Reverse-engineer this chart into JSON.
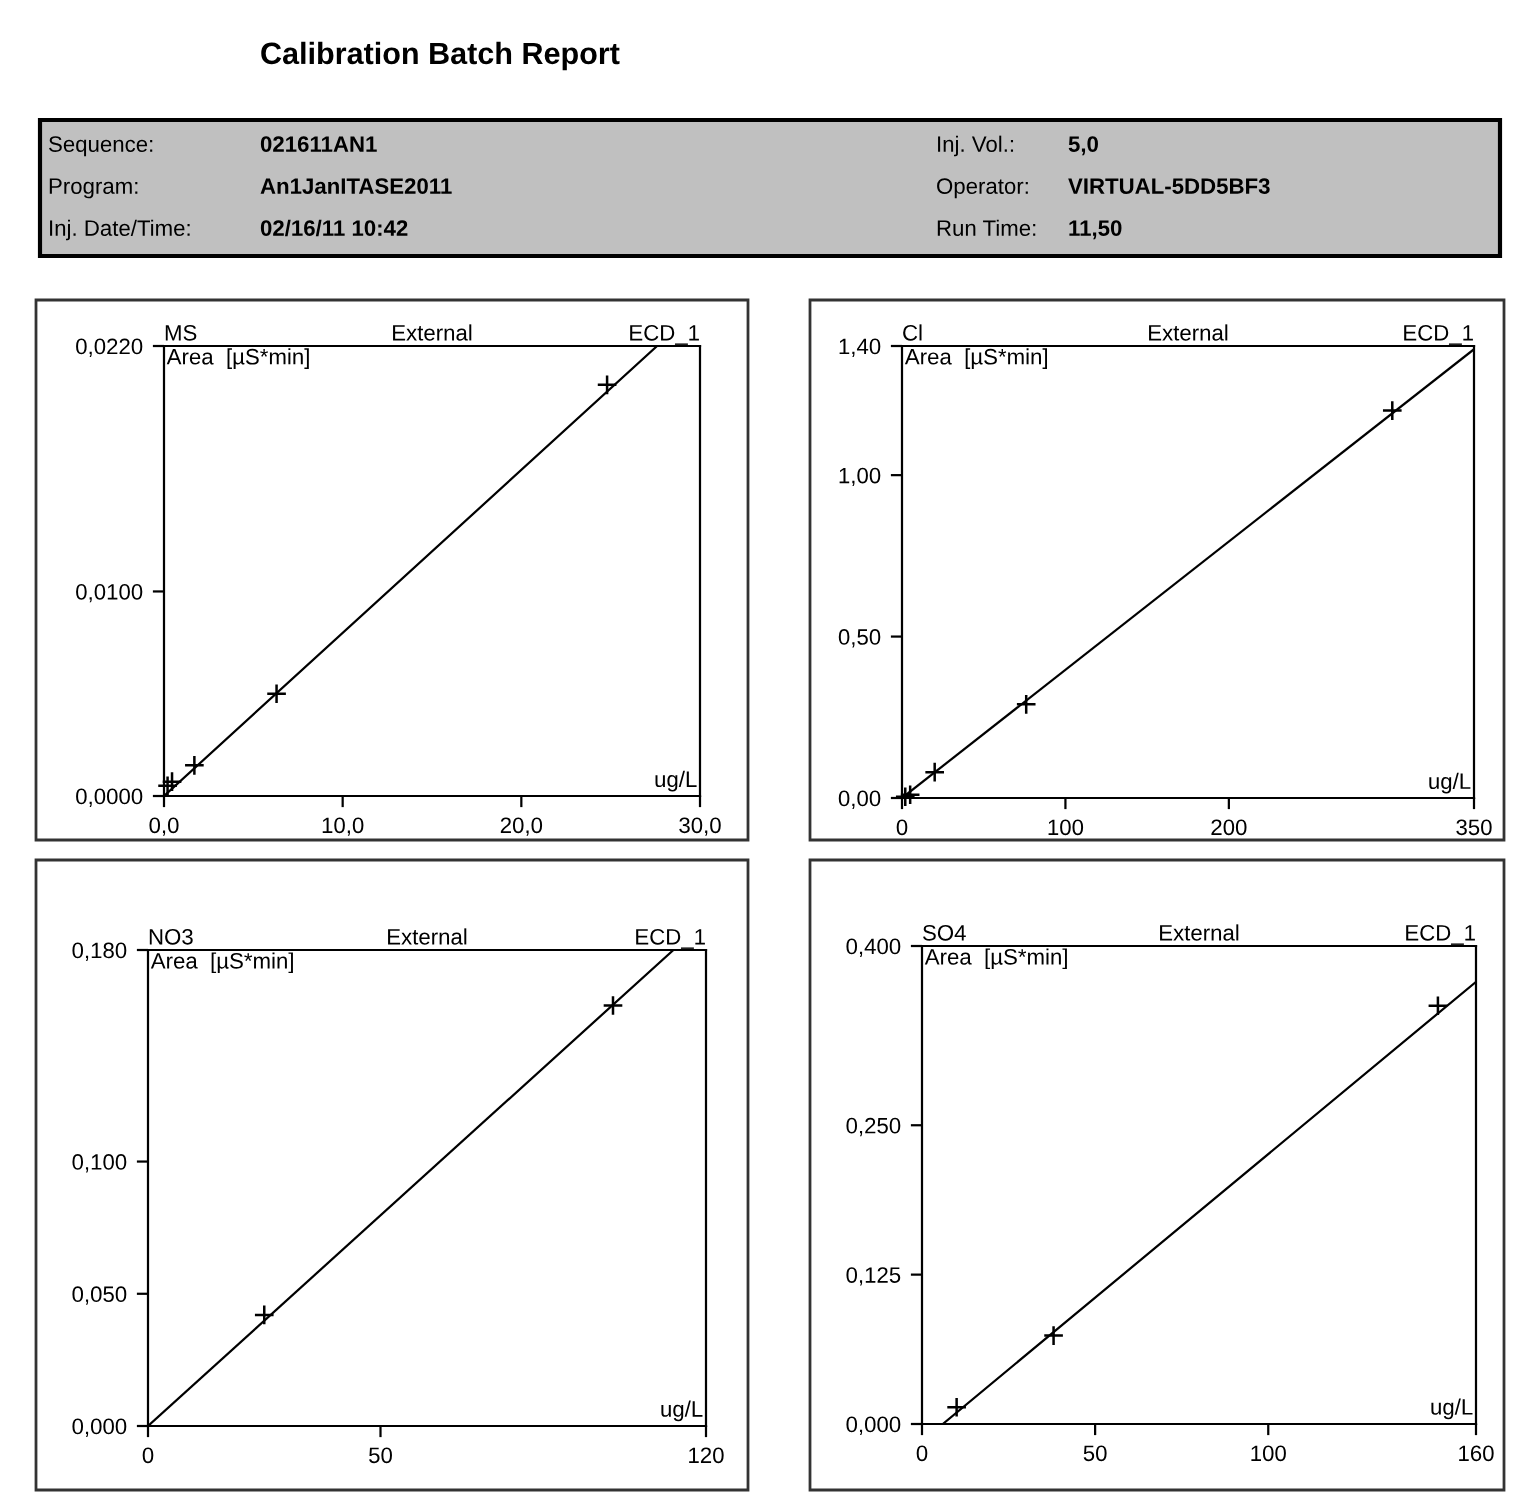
{
  "chart_data": [
    {
      "type": "other",
      "title": "Calibration Batch Report",
      "annotations": [
        "Sequence:",
        "021611AN1",
        "Inj. Vol.:",
        "5,0",
        "Program:",
        "An1JanITASE2011",
        "Operator:",
        "VIRTUAL-5DD5BF3",
        "Inj. Date/Time:",
        "02/16/11 10:42",
        "Run Time:",
        "11,50"
      ]
    },
    {
      "type": "scatter",
      "title": "MS",
      "annotations": [
        "External",
        "ECD_1"
      ],
      "ylabel": "Area  [µS*min]",
      "xlabel": "ug/L",
      "grid": false,
      "xlim": [
        0,
        30
      ],
      "xticks": [
        {
          "value": 0,
          "label": "0,0"
        },
        {
          "value": 10,
          "label": "10,0"
        },
        {
          "value": 20,
          "label": "20,0"
        },
        {
          "value": 30,
          "label": "30,0"
        }
      ],
      "ylim": [
        0,
        0.022
      ],
      "yticks": [
        {
          "value": 0,
          "label": "0,0000"
        },
        {
          "value": 0.01,
          "label": "0,0100"
        },
        {
          "value": 0.022,
          "label": "0,0220"
        }
      ],
      "series": [
        {
          "type": "scatter",
          "marker": "cross",
          "color": "#000000",
          "x": [
            0.2,
            0.45,
            1.7,
            6.3,
            24.8
          ],
          "values": [
            0.0005,
            0.0007,
            0.0015,
            0.005,
            0.0201
          ]
        },
        {
          "type": "line",
          "marker": "none",
          "color": "#000000",
          "x": [
            0,
            27.6
          ],
          "values": [
            0,
            0.022
          ]
        }
      ]
    },
    {
      "type": "scatter",
      "title": "Cl",
      "annotations": [
        "External",
        "ECD_1"
      ],
      "ylabel": "Area  [µS*min]",
      "xlabel": "ug/L",
      "grid": false,
      "xlim": [
        0,
        350
      ],
      "xticks": [
        0,
        100,
        200,
        350
      ],
      "ylim": [
        0,
        1.4
      ],
      "yticks": [
        {
          "value": 0,
          "label": "0,00"
        },
        {
          "value": 0.5,
          "label": "0,50"
        },
        {
          "value": 1.0,
          "label": "1,00"
        },
        {
          "value": 1.4,
          "label": "1,40"
        }
      ],
      "series": [
        {
          "type": "scatter",
          "marker": "cross",
          "color": "#000000",
          "x": [
            2,
            5,
            20,
            76,
            300
          ],
          "values": [
            0.004,
            0.01,
            0.08,
            0.29,
            1.2
          ]
        },
        {
          "type": "line",
          "marker": "none",
          "color": "#000000",
          "x": [
            0,
            350
          ],
          "values": [
            0,
            1.39
          ]
        }
      ]
    },
    {
      "type": "scatter",
      "title": "NO3",
      "annotations": [
        "External",
        "ECD_1"
      ],
      "ylabel": "Area  [µS*min]",
      "xlabel": "ug/L",
      "grid": false,
      "xlim": [
        0,
        120
      ],
      "xticks": [
        0,
        50,
        120
      ],
      "ylim": [
        0,
        0.18
      ],
      "yticks": [
        {
          "value": 0,
          "label": "0,000"
        },
        {
          "value": 0.05,
          "label": "0,050"
        },
        {
          "value": 0.1,
          "label": "0,100"
        },
        {
          "value": 0.18,
          "label": "0,180"
        }
      ],
      "series": [
        {
          "type": "scatter",
          "marker": "cross",
          "color": "#000000",
          "x": [
            25,
            100
          ],
          "values": [
            0.042,
            0.159
          ]
        },
        {
          "type": "line",
          "marker": "none",
          "color": "#000000",
          "x": [
            0,
            113
          ],
          "values": [
            0,
            0.18
          ]
        }
      ]
    },
    {
      "type": "scatter",
      "title": "SO4",
      "annotations": [
        "External",
        "ECD_1"
      ],
      "ylabel": "Area  [µS*min]",
      "xlabel": "ug/L",
      "grid": false,
      "xlim": [
        0,
        160
      ],
      "xticks": [
        0,
        50,
        100,
        160
      ],
      "ylim": [
        0,
        0.4
      ],
      "yticks": [
        {
          "value": 0,
          "label": "0,000"
        },
        {
          "value": 0.125,
          "label": "0,125"
        },
        {
          "value": 0.25,
          "label": "0,250"
        },
        {
          "value": 0.4,
          "label": "0,400"
        }
      ],
      "series": [
        {
          "type": "scatter",
          "marker": "cross",
          "color": "#000000",
          "x": [
            10,
            38,
            149
          ],
          "values": [
            0.014,
            0.074,
            0.35
          ]
        },
        {
          "type": "line",
          "marker": "none",
          "color": "#000000",
          "x": [
            6,
            160
          ],
          "values": [
            0,
            0.37
          ]
        }
      ]
    }
  ]
}
